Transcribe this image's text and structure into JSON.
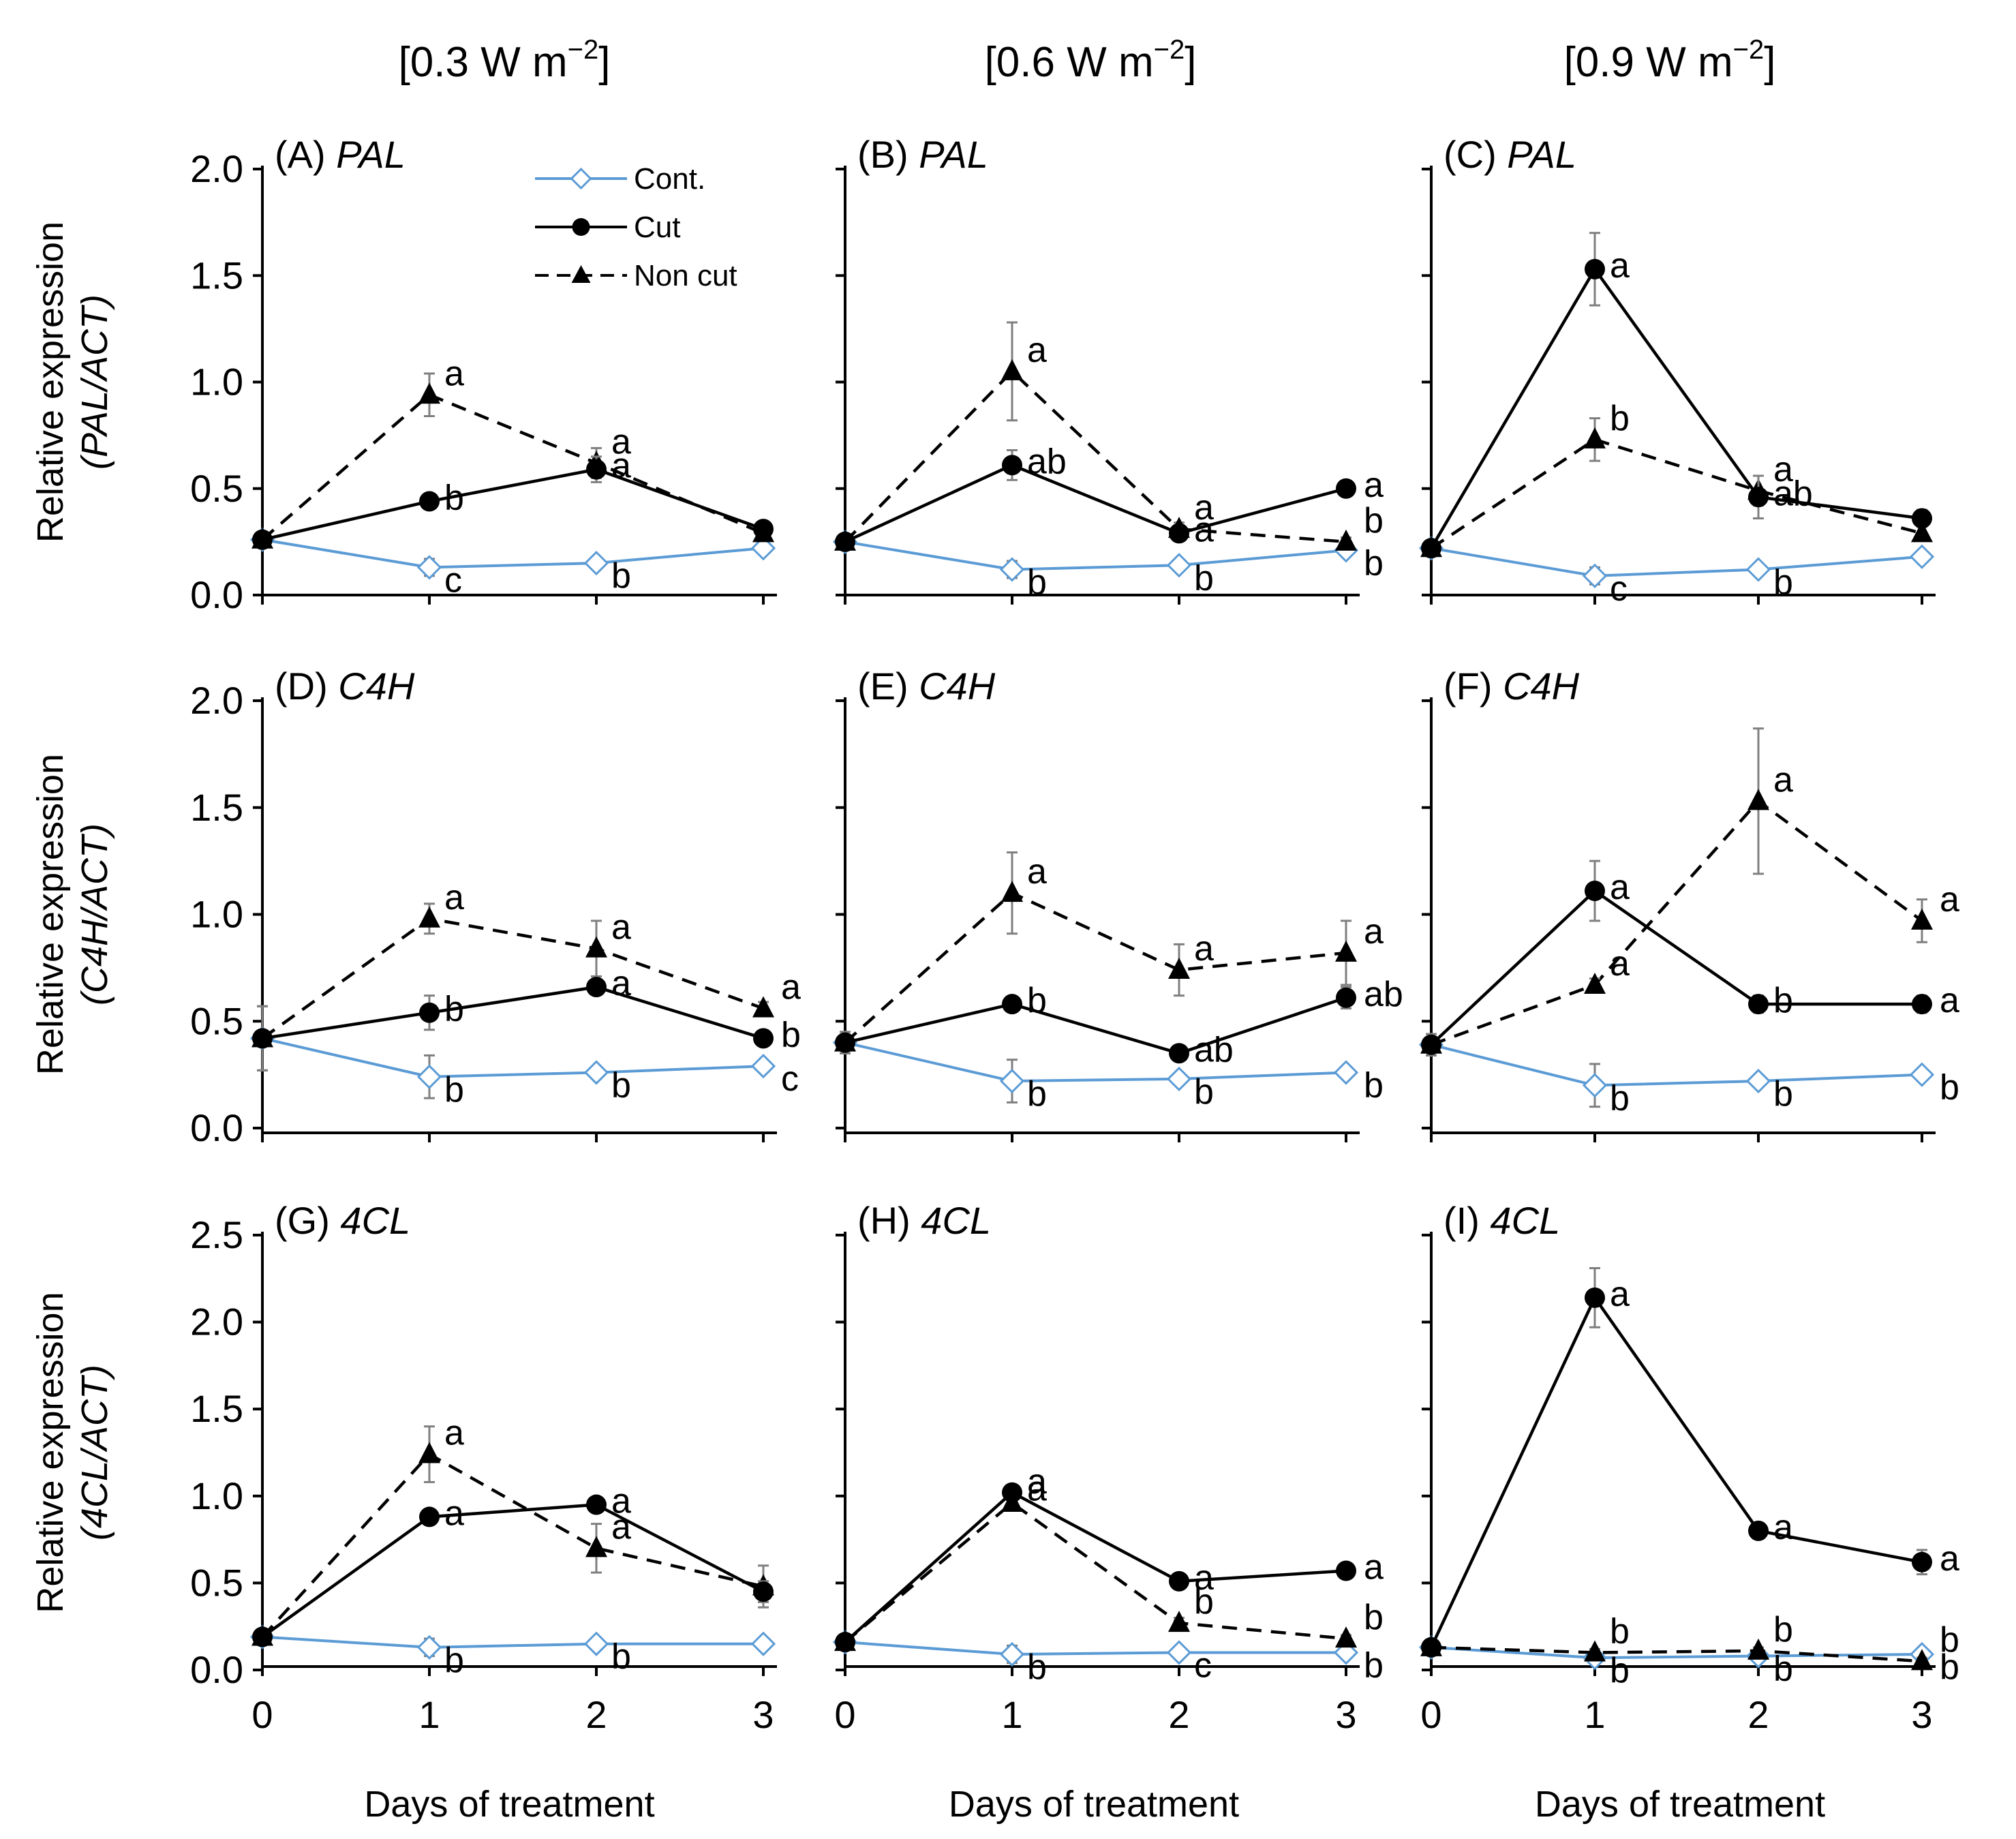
{
  "figure": {
    "column_titles": [
      {
        "prefix": "[0.3 W m",
        "sup": "−2",
        "suffix": "]"
      },
      {
        "prefix": "[0.6 W m",
        "sup": "−2",
        "suffix": "]"
      },
      {
        "prefix": "[0.9 W m",
        "sup": "−2",
        "suffix": "]"
      }
    ],
    "row_ylabels": [
      {
        "line1": "Relative expression",
        "line2": "(PAL/ACT)"
      },
      {
        "line1": "Relative expression",
        "line2": "(C4H/ACT)"
      },
      {
        "line1": "Relative expression",
        "line2": "(4CL/ACT)"
      }
    ],
    "xlabel": "Days of treatment",
    "legend": [
      {
        "key": "cont",
        "label": "Cont."
      },
      {
        "key": "cut",
        "label": "Cut"
      },
      {
        "key": "noncut",
        "label": "Non cut"
      }
    ],
    "colors": {
      "cont": "#5b9bd5",
      "cut": "#000000",
      "noncut": "#000000",
      "axis": "#000000",
      "errorbar": "#7f7f7f"
    }
  },
  "chart_data": [
    {
      "type": "line",
      "panel": "(A)",
      "gene": "PAL",
      "x": [
        0,
        1,
        2,
        3
      ],
      "xticks": [
        "0",
        "1",
        "2",
        "3"
      ],
      "ylim": [
        0,
        2.0
      ],
      "yticks": [
        "0.0",
        "0.5",
        "1.0",
        "1.5",
        "2.0"
      ],
      "show_ytick_labels": true,
      "show_xtick_labels": false,
      "series": [
        {
          "key": "cont",
          "name": "Cont.",
          "values": [
            0.26,
            0.13,
            0.15,
            0.22
          ],
          "errors": [
            0.02,
            0.04,
            0.02,
            0.02
          ],
          "letters": [
            "",
            "c",
            "b",
            ""
          ]
        },
        {
          "key": "cut",
          "name": "Cut",
          "values": [
            0.26,
            0.44,
            0.59,
            0.31
          ],
          "errors": [
            0.02,
            0.02,
            0.06,
            0.03
          ],
          "letters": [
            "",
            "b",
            "a",
            ""
          ]
        },
        {
          "key": "noncut",
          "name": "Non cut",
          "values": [
            0.26,
            0.94,
            0.62,
            0.29
          ],
          "errors": [
            0.02,
            0.1,
            0.07,
            0.03
          ],
          "letters": [
            "",
            "a",
            "a",
            ""
          ]
        }
      ]
    },
    {
      "type": "line",
      "panel": "(B)",
      "gene": "PAL",
      "x": [
        0,
        1,
        2,
        3
      ],
      "xticks": [
        "0",
        "1",
        "2",
        "3"
      ],
      "ylim": [
        0,
        2.0
      ],
      "yticks": [
        "0.0",
        "0.5",
        "1.0",
        "1.5",
        "2.0"
      ],
      "show_ytick_labels": false,
      "show_xtick_labels": false,
      "series": [
        {
          "key": "cont",
          "name": "Cont.",
          "values": [
            0.25,
            0.12,
            0.14,
            0.21
          ],
          "errors": [
            0.02,
            0.04,
            0.02,
            0.02
          ],
          "letters": [
            "",
            "b",
            "b",
            "b"
          ]
        },
        {
          "key": "cut",
          "name": "Cut",
          "values": [
            0.25,
            0.61,
            0.29,
            0.5
          ],
          "errors": [
            0.02,
            0.07,
            0.03,
            0.03
          ],
          "letters": [
            "",
            "ab",
            "a",
            "a"
          ]
        },
        {
          "key": "noncut",
          "name": "Non cut",
          "values": [
            0.25,
            1.05,
            0.31,
            0.25
          ],
          "errors": [
            0.02,
            0.23,
            0.03,
            0.02
          ],
          "letters": [
            "",
            "a",
            "a",
            "b"
          ]
        }
      ]
    },
    {
      "type": "line",
      "panel": "(C)",
      "gene": "PAL",
      "x": [
        0,
        1,
        2,
        3
      ],
      "xticks": [
        "0",
        "1",
        "2",
        "3"
      ],
      "ylim": [
        0,
        2.0
      ],
      "yticks": [
        "0.0",
        "0.5",
        "1.0",
        "1.5",
        "2.0"
      ],
      "show_ytick_labels": false,
      "show_xtick_labels": false,
      "series": [
        {
          "key": "cont",
          "name": "Cont.",
          "values": [
            0.22,
            0.09,
            0.12,
            0.18
          ],
          "errors": [
            0.02,
            0.04,
            0.02,
            0.02
          ],
          "letters": [
            "",
            "c",
            "b",
            ""
          ]
        },
        {
          "key": "cut",
          "name": "Cut",
          "values": [
            0.22,
            1.53,
            0.46,
            0.36
          ],
          "errors": [
            0.02,
            0.17,
            0.1,
            0.04
          ],
          "letters": [
            "",
            "a",
            "ab",
            ""
          ]
        },
        {
          "key": "noncut",
          "name": "Non cut",
          "values": [
            0.22,
            0.73,
            0.49,
            0.29
          ],
          "errors": [
            0.02,
            0.1,
            0.07,
            0.03
          ],
          "letters": [
            "",
            "b",
            "a",
            ""
          ]
        }
      ]
    },
    {
      "type": "line",
      "panel": "(D)",
      "gene": "C4H",
      "x": [
        0,
        1,
        2,
        3
      ],
      "xticks": [
        "0",
        "1",
        "2",
        "3"
      ],
      "ylim": [
        0,
        2.0
      ],
      "yticks": [
        "0.0",
        "0.5",
        "1.0",
        "1.5",
        "2.0"
      ],
      "show_ytick_labels": true,
      "show_xtick_labels": false,
      "series": [
        {
          "key": "cont",
          "name": "Cont.",
          "values": [
            0.42,
            0.24,
            0.26,
            0.29
          ],
          "errors": [
            0.15,
            0.1,
            0.02,
            0.02
          ],
          "letters": [
            "",
            "b",
            "b",
            "c"
          ]
        },
        {
          "key": "cut",
          "name": "Cut",
          "values": [
            0.42,
            0.54,
            0.66,
            0.42
          ],
          "errors": [
            0.15,
            0.08,
            0.03,
            0.03
          ],
          "letters": [
            "",
            "b",
            "a",
            "b"
          ]
        },
        {
          "key": "noncut",
          "name": "Non cut",
          "values": [
            0.42,
            0.98,
            0.84,
            0.56
          ],
          "errors": [
            0.15,
            0.07,
            0.13,
            0.03
          ],
          "letters": [
            "",
            "a",
            "a",
            "a"
          ]
        }
      ]
    },
    {
      "type": "line",
      "panel": "(E)",
      "gene": "C4H",
      "x": [
        0,
        1,
        2,
        3
      ],
      "xticks": [
        "0",
        "1",
        "2",
        "3"
      ],
      "ylim": [
        0,
        2.0
      ],
      "yticks": [
        "0.0",
        "0.5",
        "1.0",
        "1.5",
        "2.0"
      ],
      "show_ytick_labels": false,
      "show_xtick_labels": false,
      "series": [
        {
          "key": "cont",
          "name": "Cont.",
          "values": [
            0.4,
            0.22,
            0.23,
            0.26
          ],
          "errors": [
            0.05,
            0.1,
            0.02,
            0.02
          ],
          "letters": [
            "",
            "b",
            "b",
            "b"
          ]
        },
        {
          "key": "cut",
          "name": "Cut",
          "values": [
            0.4,
            0.58,
            0.35,
            0.61
          ],
          "errors": [
            0.05,
            0.03,
            0.03,
            0.05
          ],
          "letters": [
            "",
            "b",
            "ab",
            "ab"
          ]
        },
        {
          "key": "noncut",
          "name": "Non cut",
          "values": [
            0.4,
            1.1,
            0.74,
            0.82
          ],
          "errors": [
            0.05,
            0.19,
            0.12,
            0.15
          ],
          "letters": [
            "",
            "a",
            "a",
            "a"
          ]
        }
      ]
    },
    {
      "type": "line",
      "panel": "(F)",
      "gene": "C4H",
      "x": [
        0,
        1,
        2,
        3
      ],
      "xticks": [
        "0",
        "1",
        "2",
        "3"
      ],
      "ylim": [
        0,
        2.0
      ],
      "yticks": [
        "0.0",
        "0.5",
        "1.0",
        "1.5",
        "2.0"
      ],
      "show_ytick_labels": false,
      "show_xtick_labels": false,
      "series": [
        {
          "key": "cont",
          "name": "Cont.",
          "values": [
            0.39,
            0.2,
            0.22,
            0.25
          ],
          "errors": [
            0.05,
            0.1,
            0.02,
            0.02
          ],
          "letters": [
            "",
            "b",
            "b",
            "b"
          ]
        },
        {
          "key": "cut",
          "name": "Cut",
          "values": [
            0.39,
            1.11,
            0.58,
            0.58
          ],
          "errors": [
            0.05,
            0.14,
            0.04,
            0.04
          ],
          "letters": [
            "",
            "a",
            "b",
            "a"
          ]
        },
        {
          "key": "noncut",
          "name": "Non cut",
          "values": [
            0.39,
            0.67,
            1.53,
            0.97
          ],
          "errors": [
            0.05,
            0.03,
            0.34,
            0.1
          ],
          "letters": [
            "",
            "a",
            "a",
            "a"
          ]
        }
      ]
    },
    {
      "type": "line",
      "panel": "(G)",
      "gene": "4CL",
      "x": [
        0,
        1,
        2,
        3
      ],
      "xticks": [
        "0",
        "1",
        "2",
        "3"
      ],
      "ylim": [
        0,
        2.5
      ],
      "yticks": [
        "0.0",
        "0.5",
        "1.0",
        "1.5",
        "2.0",
        "2.5"
      ],
      "show_ytick_labels": true,
      "show_xtick_labels": true,
      "series": [
        {
          "key": "cont",
          "name": "Cont.",
          "values": [
            0.19,
            0.13,
            0.15,
            0.15
          ],
          "errors": [
            0.02,
            0.05,
            0.02,
            0.02
          ],
          "letters": [
            "",
            "b",
            "b",
            ""
          ]
        },
        {
          "key": "cut",
          "name": "Cut",
          "values": [
            0.19,
            0.88,
            0.95,
            0.45
          ],
          "errors": [
            0.02,
            0.03,
            0.03,
            0.06
          ],
          "letters": [
            "",
            "a",
            "a",
            ""
          ]
        },
        {
          "key": "noncut",
          "name": "Non cut",
          "values": [
            0.19,
            1.24,
            0.7,
            0.48
          ],
          "errors": [
            0.02,
            0.16,
            0.14,
            0.12
          ],
          "letters": [
            "",
            "a",
            "a",
            ""
          ]
        }
      ]
    },
    {
      "type": "line",
      "panel": "(H)",
      "gene": "4CL",
      "x": [
        0,
        1,
        2,
        3
      ],
      "xticks": [
        "0",
        "1",
        "2",
        "3"
      ],
      "ylim": [
        0,
        2.5
      ],
      "yticks": [
        "0.0",
        "0.5",
        "1.0",
        "1.5",
        "2.0",
        "2.5"
      ],
      "show_ytick_labels": false,
      "show_xtick_labels": true,
      "series": [
        {
          "key": "cont",
          "name": "Cont.",
          "values": [
            0.16,
            0.09,
            0.1,
            0.1
          ],
          "errors": [
            0.02,
            0.05,
            0.02,
            0.02
          ],
          "letters": [
            "",
            "b",
            "c",
            "b"
          ]
        },
        {
          "key": "cut",
          "name": "Cut",
          "values": [
            0.16,
            1.02,
            0.51,
            0.57
          ],
          "errors": [
            0.02,
            0.04,
            0.03,
            0.03
          ],
          "letters": [
            "",
            "a",
            "a",
            "a"
          ]
        },
        {
          "key": "noncut",
          "name": "Non cut",
          "values": [
            0.16,
            0.96,
            0.27,
            0.18
          ],
          "errors": [
            0.02,
            0.04,
            0.03,
            0.02
          ],
          "letters": [
            "",
            "a",
            "b",
            "b"
          ]
        }
      ]
    },
    {
      "type": "line",
      "panel": "(I)",
      "gene": "4CL",
      "x": [
        0,
        1,
        2,
        3
      ],
      "xticks": [
        "0",
        "1",
        "2",
        "3"
      ],
      "ylim": [
        0,
        2.5
      ],
      "yticks": [
        "0.0",
        "0.5",
        "1.0",
        "1.5",
        "2.0",
        "2.5"
      ],
      "show_ytick_labels": false,
      "show_xtick_labels": true,
      "series": [
        {
          "key": "cont",
          "name": "Cont.",
          "values": [
            0.13,
            0.07,
            0.08,
            0.09
          ],
          "errors": [
            0.02,
            0.03,
            0.02,
            0.02
          ],
          "letters": [
            "",
            "b",
            "b",
            "b"
          ]
        },
        {
          "key": "cut",
          "name": "Cut",
          "values": [
            0.13,
            2.14,
            0.8,
            0.62
          ],
          "errors": [
            0.02,
            0.17,
            0.03,
            0.07
          ],
          "letters": [
            "",
            "a",
            "a",
            "a"
          ]
        },
        {
          "key": "noncut",
          "name": "Non cut",
          "values": [
            0.13,
            0.1,
            0.11,
            0.05
          ],
          "errors": [
            0.02,
            0.02,
            0.02,
            0.02
          ],
          "letters": [
            "",
            "b",
            "b",
            "b"
          ]
        }
      ]
    }
  ]
}
